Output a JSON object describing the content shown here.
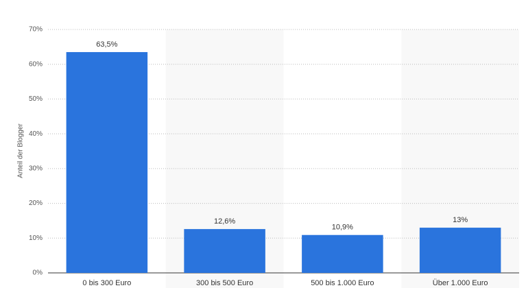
{
  "chart_data": {
    "type": "bar",
    "y_axis_label": "Anteil der Blogger",
    "categories": [
      "0 bis 300 Euro",
      "300 bis 500 Euro",
      "500 bis 1.000 Euro",
      "Über 1.000 Euro"
    ],
    "values": [
      63.5,
      12.6,
      10.9,
      13
    ],
    "value_labels": [
      "63,5%",
      "12,6%",
      "10,9%",
      "13%"
    ],
    "color": "#2a74dd",
    "ylim": [
      0,
      70
    ],
    "yticks": [
      {
        "value": 0,
        "label": "0%"
      },
      {
        "value": 10,
        "label": "10%"
      },
      {
        "value": 20,
        "label": "20%"
      },
      {
        "value": 30,
        "label": "30%"
      },
      {
        "value": 40,
        "label": "40%"
      },
      {
        "value": 50,
        "label": "50%"
      },
      {
        "value": 60,
        "label": "60%"
      },
      {
        "value": 70,
        "label": "70%"
      }
    ],
    "grid": true
  }
}
